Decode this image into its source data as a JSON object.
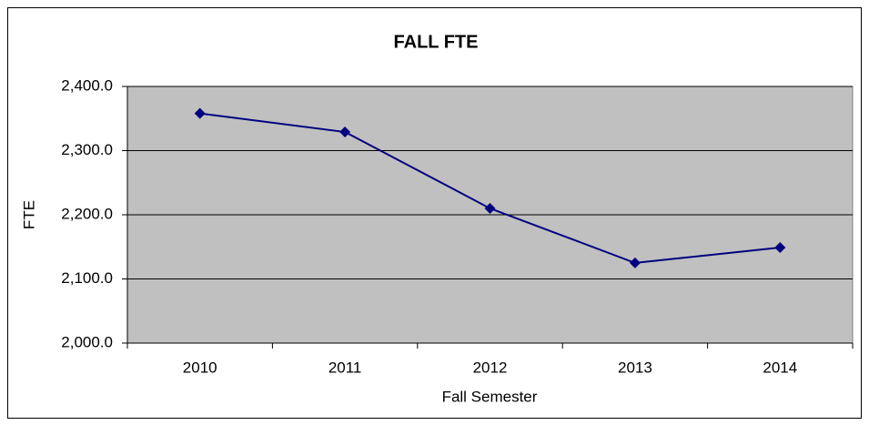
{
  "chart_data": {
    "type": "line",
    "title": "FALL FTE",
    "x_label": "Fall Semester",
    "y_label": "FTE",
    "categories": [
      "2010",
      "2011",
      "2012",
      "2013",
      "2014"
    ],
    "series": [
      {
        "name": "FTE",
        "color": "#000080",
        "values": [
          2358,
          2329,
          2210,
          2125,
          2149
        ]
      }
    ],
    "ylim": [
      2000,
      2400
    ],
    "yticks": [
      {
        "value": 2000,
        "label": "2,000.0"
      },
      {
        "value": 2100,
        "label": "2,100.0"
      },
      {
        "value": 2200,
        "label": "2,200.0"
      },
      {
        "value": 2300,
        "label": "2,300.0"
      },
      {
        "value": 2400,
        "label": "2,400.0"
      }
    ],
    "grid": true,
    "plot_background": "#c0c0c0"
  }
}
